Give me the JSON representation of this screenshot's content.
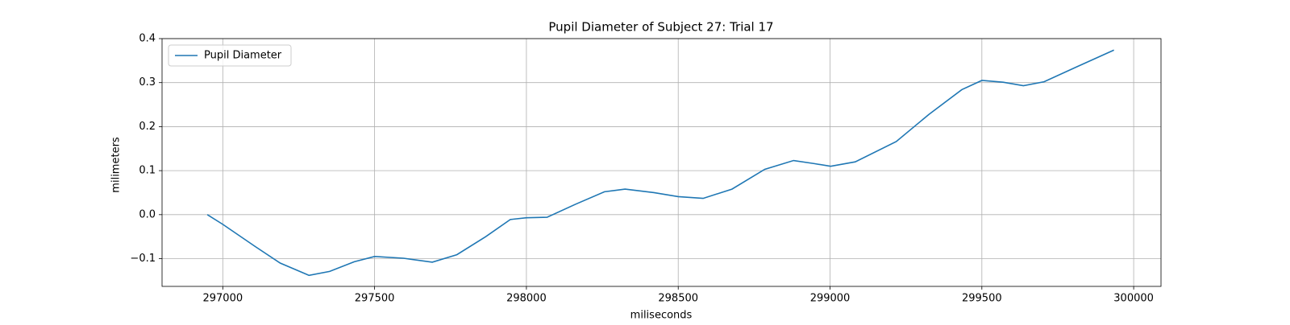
{
  "chart_data": {
    "type": "line",
    "title": "Pupil Diameter of Subject 27: Trial 17",
    "xlabel": "miliseconds",
    "ylabel": "milimeters",
    "x": [
      296949,
      297000,
      297108,
      297189,
      297284,
      297352,
      297433,
      297500,
      297595,
      297690,
      297771,
      297866,
      297947,
      298000,
      298068,
      298163,
      298257,
      298325,
      298420,
      298500,
      298582,
      298677,
      298785,
      298880,
      298948,
      299002,
      299083,
      299218,
      299326,
      299434,
      299500,
      299570,
      299637,
      299705,
      299813,
      299935
    ],
    "series": [
      {
        "name": "Pupil Diameter",
        "color": "#1f77b4",
        "values": [
          0.0,
          -0.022,
          -0.073,
          -0.11,
          -0.138,
          -0.129,
          -0.107,
          -0.095,
          -0.099,
          -0.108,
          -0.091,
          -0.05,
          -0.011,
          -0.007,
          -0.006,
          0.024,
          0.052,
          0.058,
          0.05,
          0.041,
          0.037,
          0.058,
          0.103,
          0.123,
          0.116,
          0.11,
          0.12,
          0.166,
          0.228,
          0.284,
          0.305,
          0.301,
          0.293,
          0.302,
          0.336,
          0.374
        ]
      }
    ],
    "xlim": [
      296800,
      300090
    ],
    "xticks": [
      297000,
      297500,
      298000,
      298500,
      299000,
      299500,
      300000
    ],
    "ylim": [
      -0.163,
      0.4
    ],
    "yticks": [
      {
        "value": -0.1,
        "label": "−0.1"
      },
      {
        "value": 0,
        "label": "0.0"
      },
      0.1,
      0.2,
      0.3,
      0.4
    ],
    "grid": true,
    "legend": "upper-left"
  }
}
